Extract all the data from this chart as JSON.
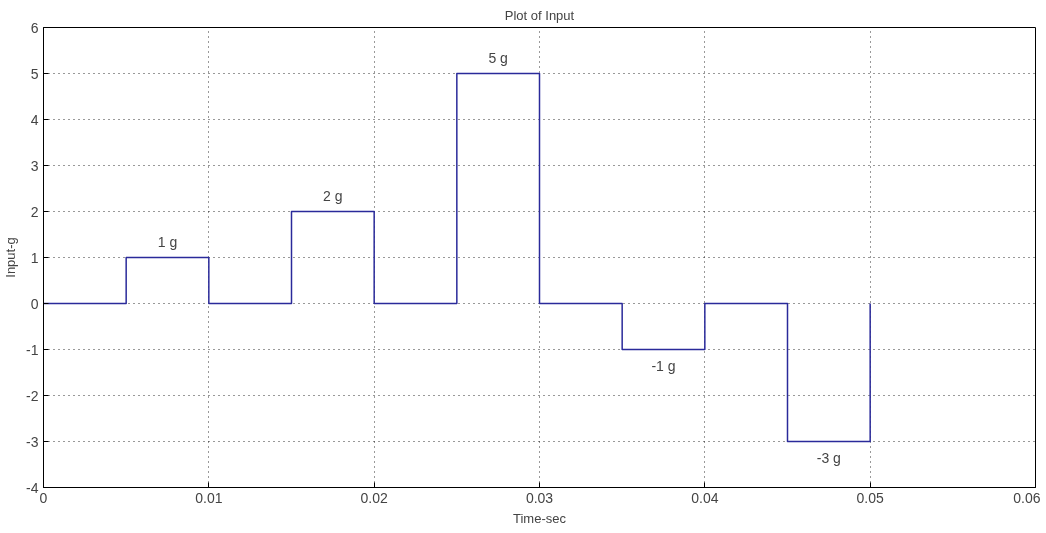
{
  "chart_data": {
    "type": "step",
    "title": "Plot of Input",
    "xlabel": "Time-sec",
    "ylabel": "Input-g",
    "x": [
      0,
      0.005,
      0.01,
      0.015,
      0.02,
      0.025,
      0.03,
      0.035,
      0.04,
      0.045,
      0.05
    ],
    "series": [
      {
        "color": "#2a2a9a",
        "values": [
          0,
          1,
          0,
          2,
          0,
          5,
          0,
          -1,
          0,
          -3,
          0
        ]
      }
    ],
    "xlim": [
      0,
      0.06
    ],
    "xticks": [
      0,
      0.01,
      0.02,
      0.03,
      0.04,
      0.05,
      0.06
    ],
    "ylim": [
      -4,
      6
    ],
    "yticks": [
      -4,
      -3,
      -2,
      -1,
      0,
      1,
      2,
      3,
      4,
      5,
      6
    ],
    "grid": true,
    "line_style": "solid",
    "annotations": [
      {
        "text": "1 g",
        "x": 0.0075,
        "y": 1
      },
      {
        "text": "2 g",
        "x": 0.0175,
        "y": 2
      },
      {
        "text": "5 g",
        "x": 0.0275,
        "y": 5
      },
      {
        "text": "-1 g",
        "x": 0.0375,
        "y": -1
      },
      {
        "text": "-3 g",
        "x": 0.0475,
        "y": -3
      }
    ]
  }
}
